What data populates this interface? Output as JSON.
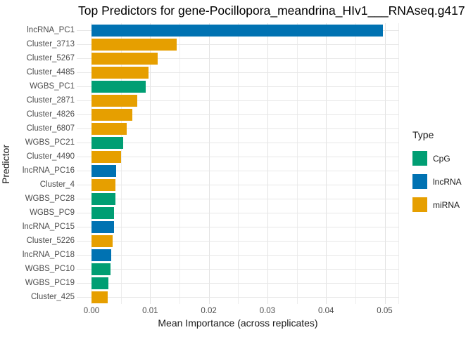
{
  "title": "Top Predictors for gene-Pocillopora_meandrina_HIv1___RNAseq.g417",
  "chart_data": {
    "type": "bar",
    "orientation": "horizontal",
    "title": "Top Predictors for gene-Pocillopora_meandrina_HIv1___RNAseq.g417",
    "xlabel": "Mean Importance (across replicates)",
    "ylabel": "Predictor",
    "x_tick_values": [
      0,
      0.01,
      0.02,
      0.03,
      0.04,
      0.05
    ],
    "x_tick_labels": [
      "0.00",
      "0.01",
      "0.02",
      "0.03",
      "0.04",
      "0.05"
    ],
    "xlim": [
      0,
      0.0525
    ],
    "grid": true,
    "gridline_minor_step": 0.005,
    "legend_position": "right",
    "legend": {
      "title": "Type",
      "entries": [
        {
          "label": "CpG",
          "color": "#009E73"
        },
        {
          "label": "lncRNA",
          "color": "#0072B2"
        },
        {
          "label": "miRNA",
          "color": "#E69F00"
        }
      ]
    },
    "bars": [
      {
        "label": "lncRNA_PC1",
        "type": "lncRNA",
        "value": 0.0497
      },
      {
        "label": "Cluster_3713",
        "type": "miRNA",
        "value": 0.0145
      },
      {
        "label": "Cluster_5267",
        "type": "miRNA",
        "value": 0.0113
      },
      {
        "label": "Cluster_4485",
        "type": "miRNA",
        "value": 0.0097
      },
      {
        "label": "WGBS_PC1",
        "type": "CpG",
        "value": 0.0093
      },
      {
        "label": "Cluster_2871",
        "type": "miRNA",
        "value": 0.0078
      },
      {
        "label": "Cluster_4826",
        "type": "miRNA",
        "value": 0.007
      },
      {
        "label": "Cluster_6807",
        "type": "miRNA",
        "value": 0.006
      },
      {
        "label": "WGBS_PC21",
        "type": "CpG",
        "value": 0.0054
      },
      {
        "label": "Cluster_4490",
        "type": "miRNA",
        "value": 0.005
      },
      {
        "label": "lncRNA_PC16",
        "type": "lncRNA",
        "value": 0.0042
      },
      {
        "label": "Cluster_4",
        "type": "miRNA",
        "value": 0.0041
      },
      {
        "label": "WGBS_PC28",
        "type": "CpG",
        "value": 0.0041
      },
      {
        "label": "WGBS_PC9",
        "type": "CpG",
        "value": 0.0038
      },
      {
        "label": "lncRNA_PC15",
        "type": "lncRNA",
        "value": 0.0038
      },
      {
        "label": "Cluster_5226",
        "type": "miRNA",
        "value": 0.0036
      },
      {
        "label": "lncRNA_PC18",
        "type": "lncRNA",
        "value": 0.0034
      },
      {
        "label": "WGBS_PC10",
        "type": "CpG",
        "value": 0.0032
      },
      {
        "label": "WGBS_PC19",
        "type": "CpG",
        "value": 0.0029
      },
      {
        "label": "Cluster_425",
        "type": "miRNA",
        "value": 0.0028
      }
    ]
  }
}
